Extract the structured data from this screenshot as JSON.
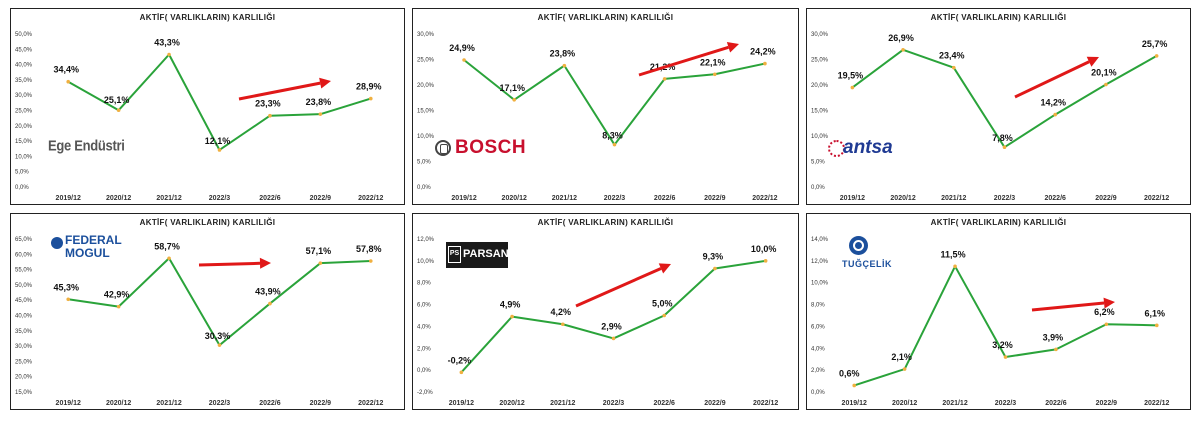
{
  "chart_data": [
    {
      "type": "line",
      "title": "AKTİF( VARLIKLARIN) KARLILIĞI",
      "logo": "Ege Endüstri",
      "categories": [
        "2019/12",
        "2020/12",
        "2021/12",
        "2022/3",
        "2022/6",
        "2022/9",
        "2022/12"
      ],
      "values": [
        34.4,
        25.1,
        43.3,
        12.1,
        23.3,
        23.8,
        28.9
      ],
      "labels": [
        "34,4%",
        "25,1%",
        "43,3%",
        "12,1%",
        "23,3%",
        "23,8%",
        "28,9%"
      ],
      "ylim": [
        0,
        50
      ],
      "yticks": [
        "0,0%",
        "5,0%",
        "10,0%",
        "15,0%",
        "20,0%",
        "25,0%",
        "30,0%",
        "35,0%",
        "40,0%",
        "45,0%",
        "50,0%"
      ],
      "line_color": "#2aa33a",
      "marker_color": "#f0b040",
      "arrow_color": "#e01818"
    },
    {
      "type": "line",
      "title": "AKTİF( VARLIKLARIN) KARLILIĞI",
      "logo": "BOSCH",
      "categories": [
        "2019/12",
        "2020/12",
        "2021/12",
        "2022/3",
        "2022/6",
        "2022/9",
        "2022/12"
      ],
      "values": [
        24.9,
        17.1,
        23.8,
        8.3,
        21.2,
        22.1,
        24.2
      ],
      "labels": [
        "24,9%",
        "17,1%",
        "23,8%",
        "8,3%",
        "21,2%",
        "22,1%",
        "24,2%"
      ],
      "ylim": [
        0,
        30
      ],
      "yticks": [
        "0,0%",
        "5,0%",
        "10,0%",
        "15,0%",
        "20,0%",
        "25,0%",
        "30,0%"
      ],
      "line_color": "#2aa33a",
      "marker_color": "#f0b040",
      "arrow_color": "#e01818"
    },
    {
      "type": "line",
      "title": "AKTİF( VARLIKLARIN) KARLILIĞI",
      "logo": "antsa",
      "categories": [
        "2019/12",
        "2020/12",
        "2021/12",
        "2022/3",
        "2022/6",
        "2022/9",
        "2022/12"
      ],
      "values": [
        19.5,
        26.9,
        23.4,
        7.8,
        14.2,
        20.1,
        25.7
      ],
      "labels": [
        "19,5%",
        "26,9%",
        "23,4%",
        "7,8%",
        "14,2%",
        "20,1%",
        "25,7%"
      ],
      "ylim": [
        0,
        30
      ],
      "yticks": [
        "0,0%",
        "5,0%",
        "10,0%",
        "15,0%",
        "20,0%",
        "25,0%",
        "30,0%"
      ],
      "line_color": "#2aa33a",
      "marker_color": "#f0b040",
      "arrow_color": "#e01818"
    },
    {
      "type": "line",
      "title": "AKTİF( VARLIKLARIN) KARLILIĞI",
      "logo": "FEDERAL MOGUL",
      "categories": [
        "2019/12",
        "2020/12",
        "2021/12",
        "2022/3",
        "2022/6",
        "2022/9",
        "2022/12"
      ],
      "values": [
        45.3,
        42.9,
        58.7,
        30.3,
        43.9,
        57.1,
        57.8
      ],
      "labels": [
        "45,3%",
        "42,9%",
        "58,7%",
        "30,3%",
        "43,9%",
        "57,1%",
        "57,8%"
      ],
      "ylim": [
        15,
        65
      ],
      "yticks": [
        "15,0%",
        "20,0%",
        "25,0%",
        "30,0%",
        "35,0%",
        "40,0%",
        "45,0%",
        "50,0%",
        "55,0%",
        "60,0%",
        "65,0%"
      ],
      "line_color": "#2aa33a",
      "marker_color": "#f0b040",
      "arrow_color": "#e01818"
    },
    {
      "type": "line",
      "title": "AKTİF( VARLIKLARIN) KARLILIĞI",
      "logo": "PARSAN",
      "categories": [
        "2019/12",
        "2020/12",
        "2021/12",
        "2022/3",
        "2022/6",
        "2022/9",
        "2022/12"
      ],
      "values": [
        -0.2,
        4.9,
        4.2,
        2.9,
        5.0,
        9.3,
        10.0
      ],
      "labels": [
        "-0,2%",
        "4,9%",
        "4,2%",
        "2,9%",
        "5,0%",
        "9,3%",
        "10,0%"
      ],
      "ylim": [
        -2,
        12
      ],
      "yticks": [
        "-2,0%",
        "0,0%",
        "2,0%",
        "4,0%",
        "6,0%",
        "8,0%",
        "10,0%",
        "12,0%"
      ],
      "line_color": "#2aa33a",
      "marker_color": "#f0b040",
      "arrow_color": "#e01818"
    },
    {
      "type": "line",
      "title": "AKTİF( VARLIKLARIN) KARLILIĞI",
      "logo": "TUĞÇELİK",
      "categories": [
        "2019/12",
        "2020/12",
        "2021/12",
        "2022/3",
        "2022/6",
        "2022/9",
        "2022/12"
      ],
      "values": [
        0.6,
        2.1,
        11.5,
        3.2,
        3.9,
        6.2,
        6.1
      ],
      "labels": [
        "0,6%",
        "2,1%",
        "11,5%",
        "3,2%",
        "3,9%",
        "6,2%",
        "6,1%"
      ],
      "ylim": [
        0,
        14
      ],
      "yticks": [
        "0,0%",
        "2,0%",
        "4,0%",
        "6,0%",
        "8,0%",
        "10,0%",
        "12,0%",
        "14,0%"
      ],
      "line_color": "#2aa33a",
      "marker_color": "#f0b040",
      "arrow_color": "#e01818"
    }
  ]
}
